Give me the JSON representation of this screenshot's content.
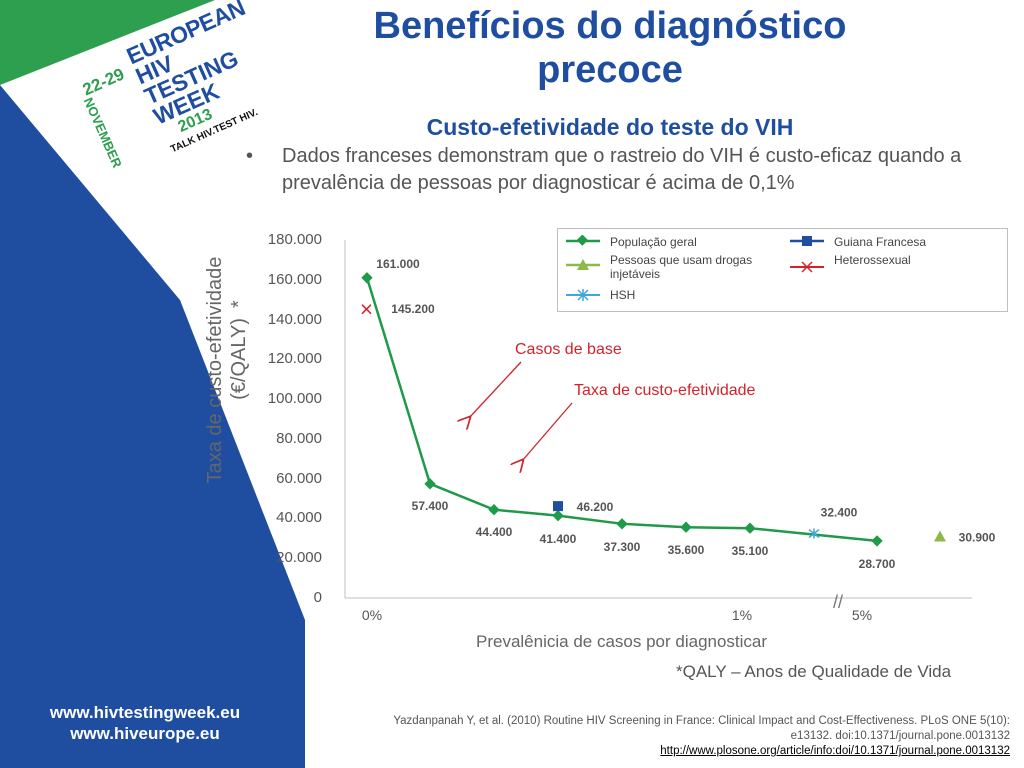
{
  "slide": {
    "title_line1": "Benefícios do diagnóstico",
    "title_line2": "precoce",
    "subtitle": "Custo-efetividade do teste do VIH",
    "bullet_marker": "•",
    "bullet_text": "Dados franceses demonstram que o rastreio do VIH é custo-eficaz quando a prevalência de pessoas por diagnosticar é acima de 0,1%",
    "qaly_note": "*QALY – Anos  de Qualidade de Vida",
    "reference_line1": "Yazdanpanah Y, et al. (2010) Routine HIV Screening in France: Clinical Impact and Cost-Effectiveness. PLoS ONE 5(10):",
    "reference_line2": "e13132. doi:10.1371/journal.pone.0013132",
    "reference_link": "http://www.plosone.org/article/info:doi/10.1371/journal.pone.0013132"
  },
  "logo": {
    "dates": "22-29",
    "month": "NOVEMBER",
    "year": "2013",
    "word1": "EUROPEAN",
    "word2": "HIV",
    "word3": "TESTING",
    "word4": "WEEK",
    "tagline": "TALK HIV.TEST HIV."
  },
  "sidebar": {
    "url1": "www.hivtestingweek.eu",
    "url2": "www.hiveurope.eu"
  },
  "colors": {
    "brand_blue": "#1f4ea1",
    "brand_green": "#2e9e4f",
    "series_green": "#1f9a48",
    "annotation_red": "#d2232a"
  },
  "annotations": {
    "base_cases": "Casos de base",
    "cost_effectiveness": "Taxa de custo-efetividade"
  },
  "chart_data": {
    "type": "line",
    "ylabel_line1": "Taxa de custo-efetividade",
    "ylabel_line2": "(€/QALY)",
    "ylabel_star": "*",
    "xlabel": "Prevalênicia de casos por diagnosticar",
    "ylim": [
      0,
      180000
    ],
    "yticks": [
      "0",
      "20.000",
      "40.000",
      "60.000",
      "80.000",
      "100.000",
      "120.000",
      "140.000",
      "160.000",
      "180.000"
    ],
    "x_tick_labels": [
      "0%",
      "1%",
      "5%"
    ],
    "axis_break": "//",
    "legend_position": "top-right",
    "series": [
      {
        "name": "População geral",
        "marker": "diamond",
        "color": "#1f9a48",
        "values": [
          161000,
          57400,
          44400,
          41400,
          37300,
          35600,
          35100,
          28700
        ],
        "labels": [
          "161.000",
          "57.400",
          "44.400",
          "41.400",
          "37.300",
          "35.600",
          "35.100",
          "28.700"
        ]
      },
      {
        "name": "Guiana Francesa",
        "marker": "square",
        "color": "#1f4ea1",
        "values": [
          46200
        ],
        "labels": [
          "46.200"
        ]
      },
      {
        "name": "Pessoas que usam drogas injetáveis",
        "marker": "triangle",
        "color": "#8db84a",
        "values": [
          30900
        ],
        "labels": [
          "30.900"
        ]
      },
      {
        "name": "Heterossexual",
        "marker": "x",
        "color": "#d2232a",
        "values": [
          145200
        ],
        "labels": [
          "145.200"
        ]
      },
      {
        "name": "HSH",
        "marker": "asterisk",
        "color": "#3fa8d6",
        "values": [
          32400
        ],
        "labels": [
          "32.400"
        ]
      }
    ],
    "legend": {
      "items": [
        "População geral",
        "Guiana Francesa",
        "Pessoas que usam drogas injetáveis",
        "Heterossexual",
        "HSH"
      ]
    }
  }
}
